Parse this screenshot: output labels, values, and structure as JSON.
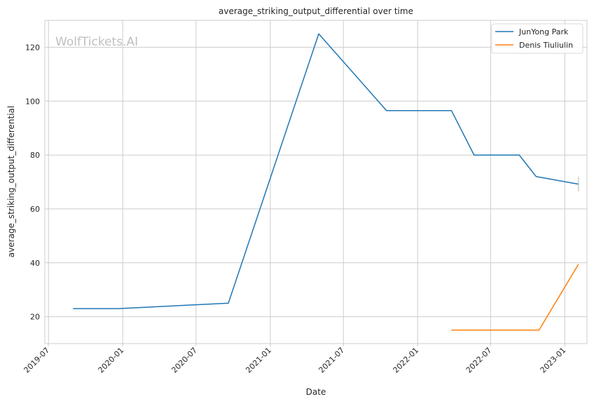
{
  "chart_data": {
    "type": "line",
    "title": "average_striking_output_differential over time",
    "xlabel": "Date",
    "ylabel": "average_striking_output_differential",
    "watermark": "WolfTickets.AI",
    "grid": true,
    "legend_position": "top-right",
    "xlim": [
      "2019-06-22",
      "2023-02-25"
    ],
    "ylim": [
      10,
      130
    ],
    "x_ticks": [
      "2019-07",
      "2020-01",
      "2020-07",
      "2021-01",
      "2021-07",
      "2022-01",
      "2022-07",
      "2023-01"
    ],
    "y_ticks": [
      20,
      40,
      60,
      80,
      100,
      120
    ],
    "series": [
      {
        "name": "JunYong Park",
        "color": "#1f77b4",
        "points": [
          {
            "x": "2019-08-31",
            "y": 23
          },
          {
            "x": "2019-12-21",
            "y": 23
          },
          {
            "x": "2020-09-19",
            "y": 25
          },
          {
            "x": "2021-05-01",
            "y": 125
          },
          {
            "x": "2021-10-16",
            "y": 96.5
          },
          {
            "x": "2022-03-26",
            "y": 96.5
          },
          {
            "x": "2022-05-21",
            "y": 80
          },
          {
            "x": "2022-09-10",
            "y": 80
          },
          {
            "x": "2022-10-22",
            "y": 72
          },
          {
            "x": "2023-02-04",
            "y": 69.2
          }
        ]
      },
      {
        "name": "Denis Tiuliulin",
        "color": "#ff7f0e",
        "points": [
          {
            "x": "2022-03-26",
            "y": 15
          },
          {
            "x": "2022-10-29",
            "y": 15
          },
          {
            "x": "2023-02-04",
            "y": 39.5
          }
        ]
      }
    ],
    "error_bar": {
      "x": "2023-02-04",
      "y_low": 66.5,
      "y_high": 72,
      "color": "#b3b3b3"
    }
  }
}
